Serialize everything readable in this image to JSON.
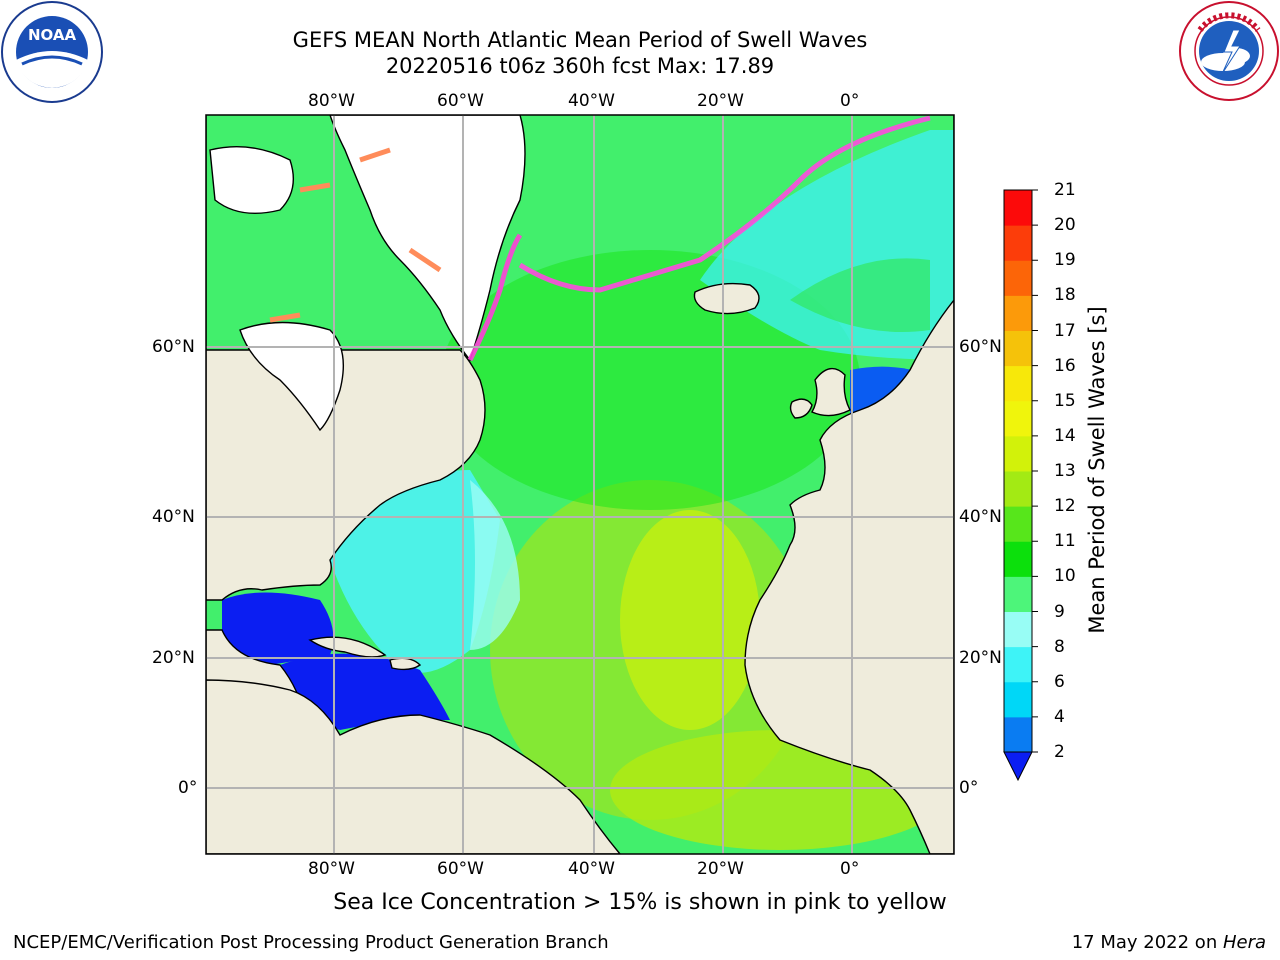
{
  "header": {
    "title_line1": "GEFS MEAN North Atlantic Mean Period of Swell Waves",
    "title_line2": "20220516 t06z 360h fcst   Max: 17.89"
  },
  "logos": {
    "noaa": {
      "text": "NOAA",
      "ring_text": "NATIONAL OCEANIC AND ATMOSPHERIC ADMINISTRATION · U.S. DEPARTMENT OF COMMERCE"
    },
    "nws": {
      "ring_text": "NATIONAL WEATHER SERVICE"
    }
  },
  "map": {
    "projection": "equirectangular",
    "lon_range": [
      -98,
      16
    ],
    "lat_range": [
      -10,
      80
    ],
    "lon_ticks": [
      "80°W",
      "60°W",
      "40°W",
      "20°W",
      "0°"
    ],
    "lat_ticks": [
      "60°N",
      "40°N",
      "20°N",
      "0°"
    ],
    "field": "Mean Period of Swell Waves",
    "colors": {
      "land": "#efecdc",
      "sea_ice": "#ffffff",
      "grid": "#b3b3b3"
    }
  },
  "colorbar": {
    "label": "Mean Period of Swell Waves [s]",
    "levels": [
      "2",
      "4",
      "6",
      "8",
      "9",
      "10",
      "11",
      "12",
      "13",
      "14",
      "15",
      "16",
      "17",
      "18",
      "19",
      "20",
      "21"
    ],
    "colors": [
      "#0b1ef2",
      "#0a7cf2",
      "#00d7f7",
      "#3ef3f7",
      "#98fdf5",
      "#4df57a",
      "#0ce00c",
      "#57e61b",
      "#a3ea14",
      "#d2f20a",
      "#f0f50c",
      "#f7e80a",
      "#f5c20a",
      "#fc9a0a",
      "#fc6508",
      "#fc3d0a",
      "#fc0a0a"
    ],
    "extend": "min"
  },
  "footer": {
    "note": "Sea Ice Concentration > 15% is shown in pink to yellow",
    "left": "NCEP/EMC/Verification Post Processing Product Generation Branch",
    "date_text": "17 May 2022 on ",
    "machine": "Hera"
  }
}
